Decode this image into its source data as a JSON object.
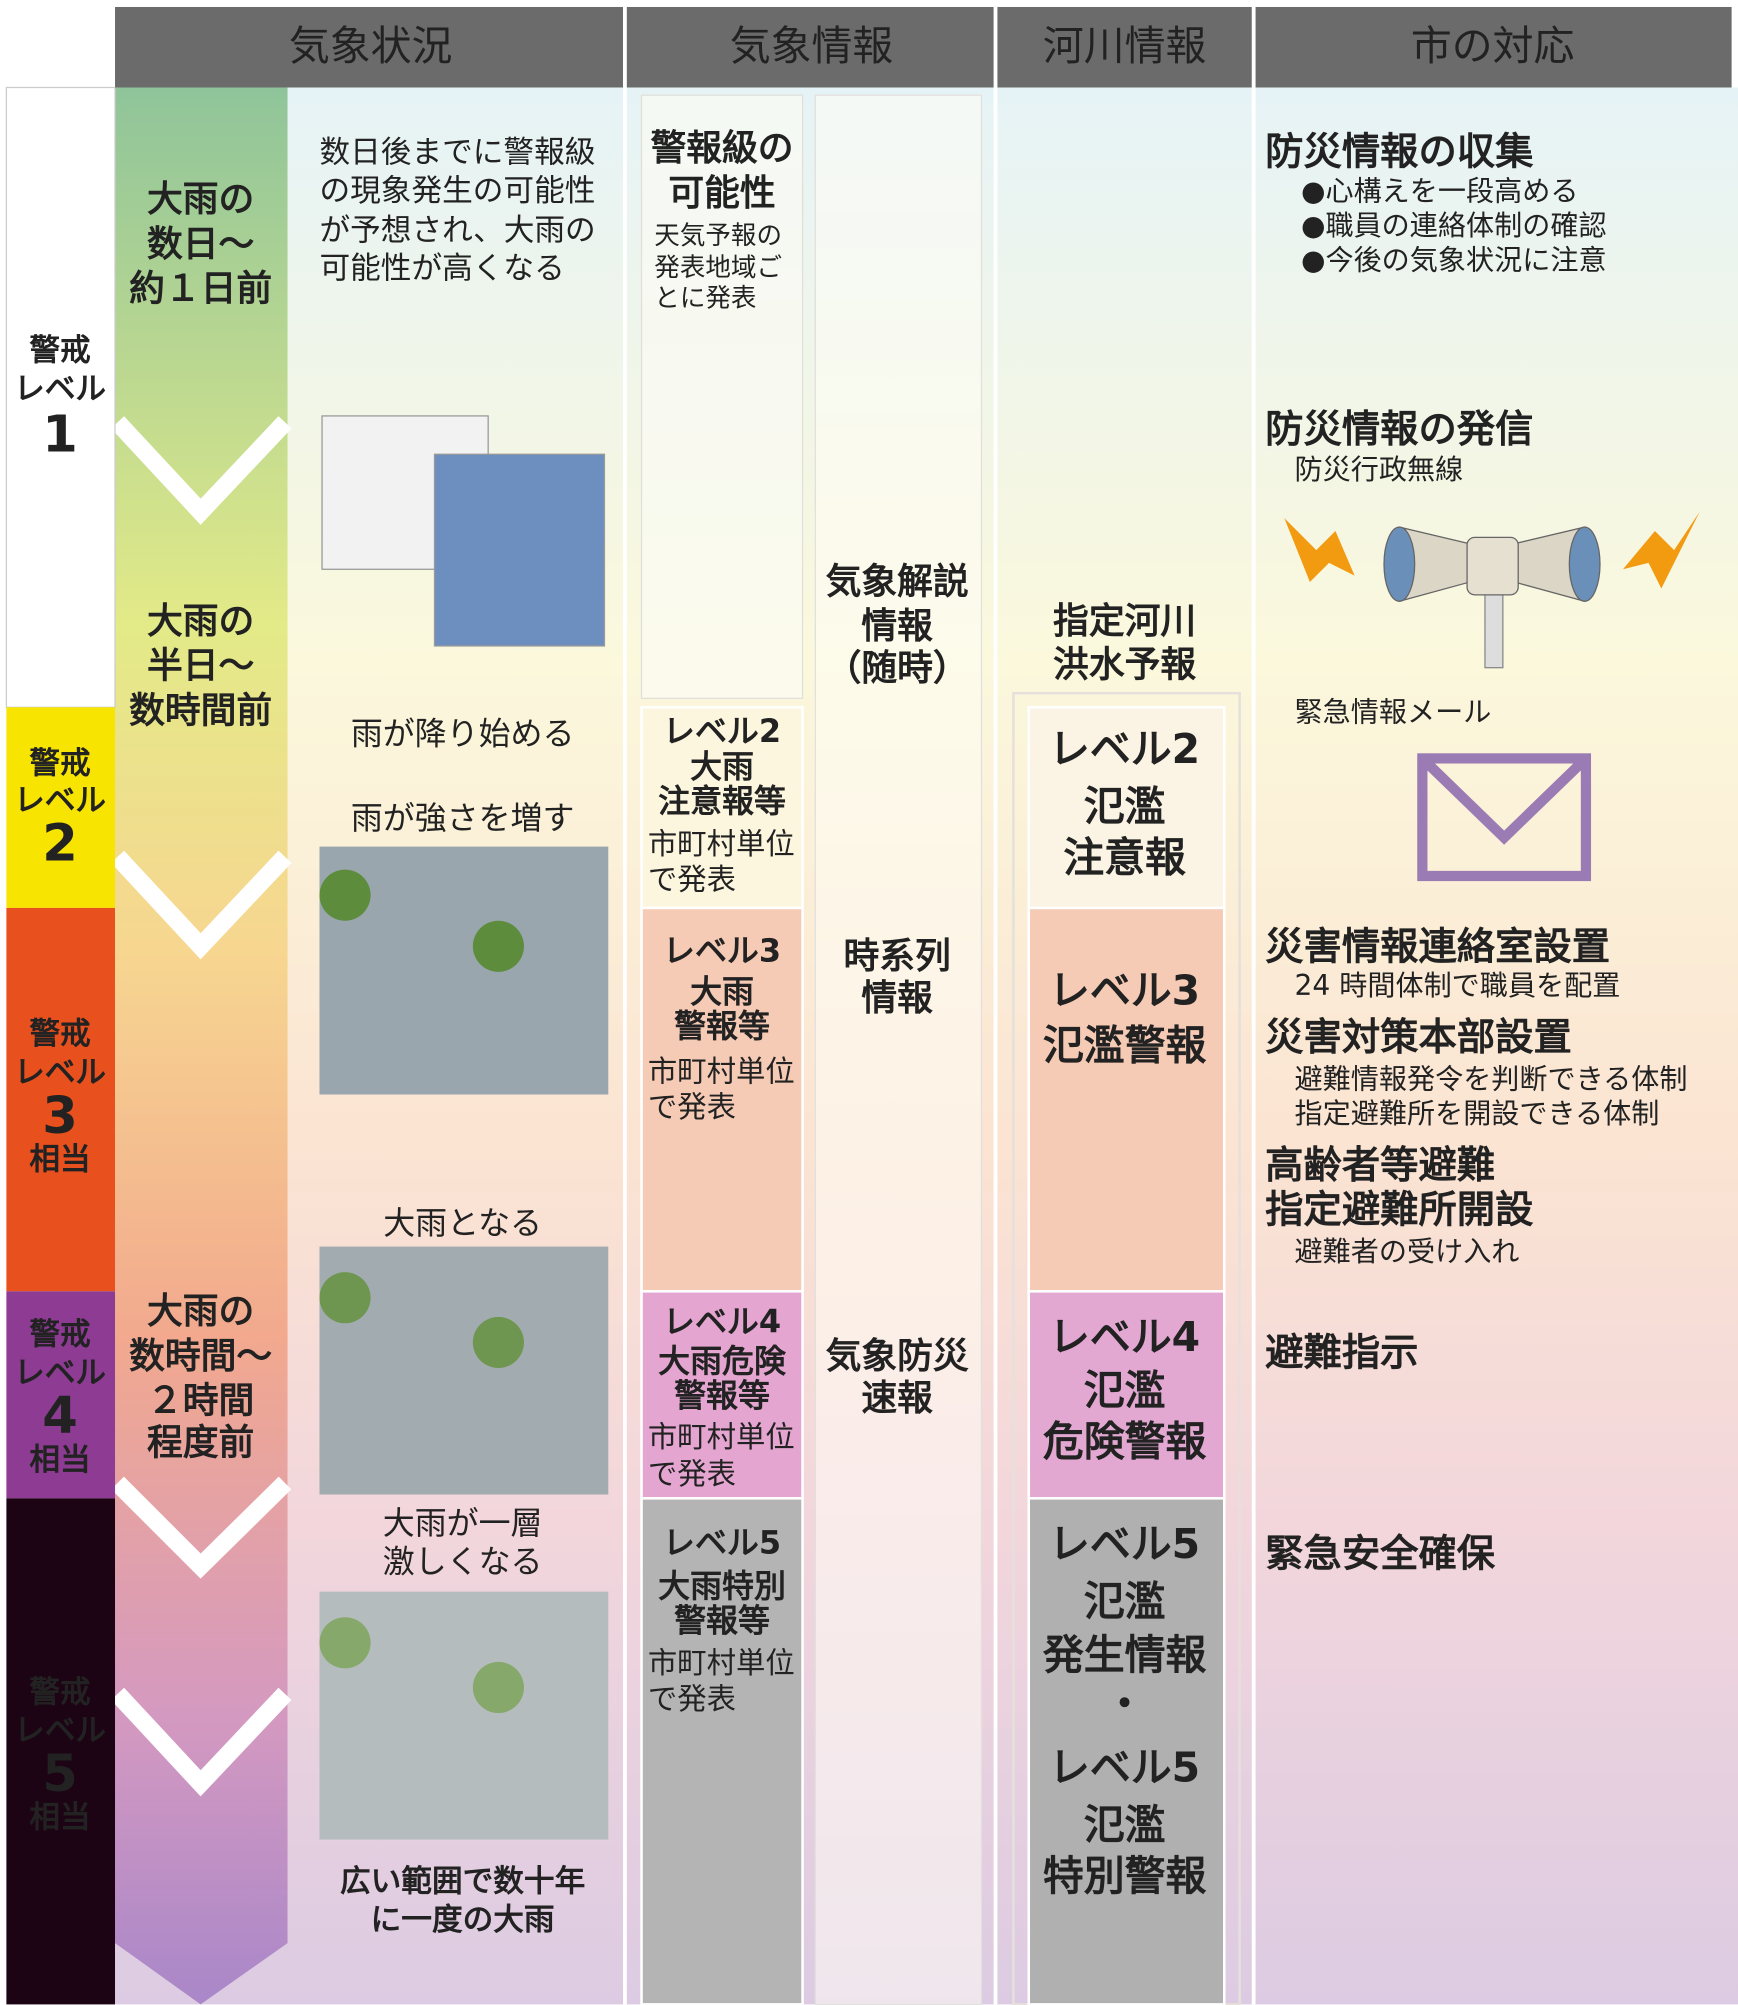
{
  "header": {
    "columns": [
      "気象状況",
      "気象情報",
      "河川情報",
      "市の対応"
    ]
  },
  "levels": [
    [
      "警戒",
      "レベル",
      "1"
    ],
    [
      "警戒",
      "レベル",
      "2"
    ],
    [
      "警戒",
      "レベル",
      "3",
      "相当"
    ],
    [
      "警戒",
      "レベル",
      "4",
      "相当"
    ],
    [
      "警戒",
      "レベル",
      "5",
      "相当"
    ]
  ],
  "timing": [
    [
      "大雨の",
      "数日〜",
      "約１日前"
    ],
    [
      "大雨の",
      "半日〜",
      "数時間前"
    ],
    [
      "大雨の",
      "数時間〜",
      "２時間",
      "程度前"
    ]
  ],
  "conditions": [
    [
      "数日後までに警報級",
      "の現象発生の可能性",
      "が予想され、大雨の",
      "可能性が高くなる"
    ],
    [
      "雨が降り始める"
    ],
    [
      "雨が強さを増す"
    ],
    [
      "大雨となる"
    ],
    [
      "大雨が一層",
      "激しくなる"
    ],
    [
      "広い範囲で数十年",
      "に一度の大雨"
    ]
  ],
  "weather_info": [
    {
      "title": [
        "警報級の",
        "可能性"
      ],
      "note": [
        "天気予報の",
        "発表地域ご",
        "とに発表"
      ]
    },
    {
      "title": [
        "レベル2",
        "大雨",
        "注意報等"
      ],
      "note": [
        "市町村単位",
        "で発表"
      ]
    },
    {
      "title": [
        "レベル3",
        "大雨",
        "警報等"
      ],
      "note": [
        "市町村単位",
        "で発表"
      ]
    },
    {
      "title": [
        "レベル4",
        "大雨危険",
        "警報等"
      ],
      "note": [
        "市町村単位",
        "で発表"
      ]
    },
    {
      "title": [
        "レベル5",
        "大雨特別",
        "警報等"
      ],
      "note": [
        "市町村単位",
        "で発表"
      ]
    }
  ],
  "commentary": [
    [
      "気象解説",
      "情報",
      "（随時）"
    ],
    [
      "時系列",
      "情報"
    ],
    [
      "気象防災",
      "速報"
    ]
  ],
  "river_info": {
    "title": [
      "指定河川",
      "洪水予報"
    ],
    "levels": [
      [
        "レベル2",
        "氾濫",
        "注意報"
      ],
      [
        "レベル3",
        "氾濫警報"
      ],
      [
        "レベル4",
        "氾濫",
        "危険警報"
      ],
      [
        "レベル5",
        "氾濫",
        "発生情報",
        "・",
        "レベル5",
        "氾濫",
        "特別警報"
      ]
    ]
  },
  "city_response": [
    {
      "title": [
        "防災情報の収集"
      ],
      "details": [
        "●心構えを一段高める",
        "●職員の連絡体制の確認",
        "●今後の気象状況に注意"
      ]
    },
    {
      "title": [
        "防災情報の発信"
      ],
      "details": [
        "防災行政無線"
      ]
    },
    {
      "details": [
        "緊急情報メール"
      ]
    },
    {
      "title": [
        "災害情報連絡室設置"
      ],
      "details": [
        "24 時間体制で職員を配置"
      ]
    },
    {
      "title": [
        "災害対策本部設置"
      ],
      "details": [
        "避難情報発令を判断できる体制",
        "指定避難所を開設できる体制"
      ]
    },
    {
      "title": [
        "高齢者等避難",
        "指定避難所開設"
      ],
      "details": [
        "避難者の受け入れ"
      ]
    },
    {
      "title": [
        "避難指示"
      ]
    },
    {
      "title": [
        "緊急安全確保"
      ]
    }
  ]
}
